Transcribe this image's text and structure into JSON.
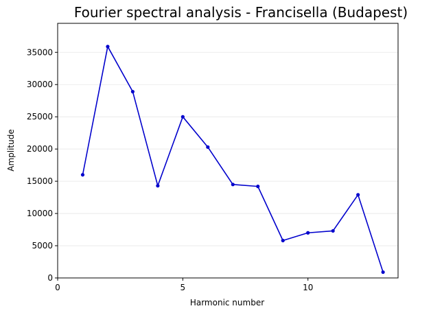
{
  "chart_data": {
    "type": "line",
    "title": "Fourier spectral analysis - Francisella (Budapest)",
    "xlabel": "Harmonic number",
    "ylabel": "Amplitude",
    "xlim": [
      0,
      13.6
    ],
    "ylim": [
      0,
      39500
    ],
    "xticks": [
      0,
      5,
      10
    ],
    "yticks": [
      0,
      5000,
      10000,
      15000,
      20000,
      25000,
      30000,
      35000
    ],
    "grid": "horizontal",
    "series": [
      {
        "color": "#0000cc",
        "x": [
          1,
          2,
          3,
          4,
          5,
          6,
          7,
          8,
          9,
          10,
          11,
          12,
          13
        ],
        "y": [
          16000,
          35900,
          28900,
          14300,
          25000,
          20300,
          14500,
          14200,
          5800,
          7000,
          7300,
          12900,
          900
        ]
      }
    ]
  }
}
